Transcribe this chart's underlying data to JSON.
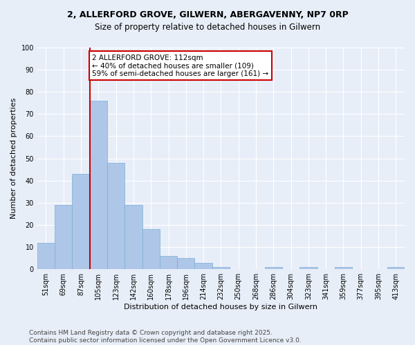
{
  "title": "2, ALLERFORD GROVE, GILWERN, ABERGAVENNY, NP7 0RP",
  "subtitle": "Size of property relative to detached houses in Gilwern",
  "xlabel": "Distribution of detached houses by size in Gilwern",
  "ylabel": "Number of detached properties",
  "categories": [
    "51sqm",
    "69sqm",
    "87sqm",
    "105sqm",
    "123sqm",
    "142sqm",
    "160sqm",
    "178sqm",
    "196sqm",
    "214sqm",
    "232sqm",
    "250sqm",
    "268sqm",
    "286sqm",
    "304sqm",
    "323sqm",
    "341sqm",
    "359sqm",
    "377sqm",
    "395sqm",
    "413sqm"
  ],
  "values": [
    12,
    29,
    43,
    76,
    48,
    29,
    18,
    6,
    5,
    3,
    1,
    0,
    0,
    1,
    0,
    1,
    0,
    1,
    0,
    0,
    1
  ],
  "bar_color": "#aec6e8",
  "bar_edge_color": "#7aaed4",
  "vline_x_index": 3,
  "vline_color": "#cc0000",
  "annotation_text": "2 ALLERFORD GROVE: 112sqm\n← 40% of detached houses are smaller (109)\n59% of semi-detached houses are larger (161) →",
  "annotation_box_color": "#ffffff",
  "annotation_box_edge": "#cc0000",
  "ylim": [
    0,
    100
  ],
  "yticks": [
    0,
    10,
    20,
    30,
    40,
    50,
    60,
    70,
    80,
    90,
    100
  ],
  "background_color": "#e8eef8",
  "grid_color": "#ffffff",
  "footer_text": "Contains HM Land Registry data © Crown copyright and database right 2025.\nContains public sector information licensed under the Open Government Licence v3.0.",
  "title_fontsize": 9,
  "subtitle_fontsize": 8.5,
  "axis_label_fontsize": 8,
  "tick_fontsize": 7,
  "annotation_fontsize": 7.5,
  "footer_fontsize": 6.5
}
